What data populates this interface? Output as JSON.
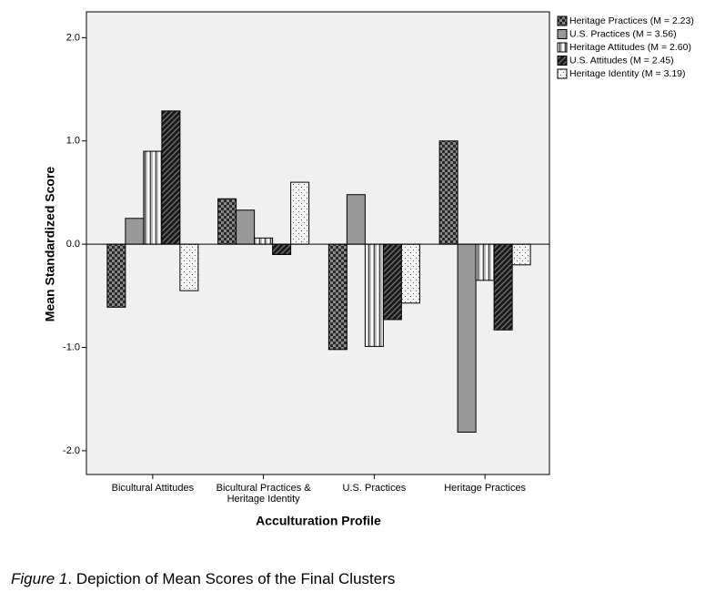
{
  "chart_data": {
    "type": "bar",
    "x_label": "Acculturation Profile",
    "y_label": "Mean Standardized Score",
    "categories": [
      "Bicultural Attitudes",
      "Bicultural Practices & Heritage Identity",
      "U.S. Practices",
      "Heritage Practices"
    ],
    "series": [
      {
        "name": "Heritage Practices (M = 2.23)",
        "color": "#2a2a2a",
        "values": [
          -0.61,
          0.44,
          -1.02,
          1.0
        ]
      },
      {
        "name": "U.S. Practices (M = 3.56)",
        "color": "#999999",
        "values": [
          0.25,
          0.33,
          0.48,
          -1.82
        ]
      },
      {
        "name": "Heritage Attitudes (M = 2.60)",
        "color": "#bbbbbb",
        "values": [
          0.9,
          0.06,
          -0.99,
          -0.35
        ]
      },
      {
        "name": "U.S. Attitudes (M = 2.45)",
        "color": "#1a1a1a",
        "values": [
          1.29,
          -0.1,
          -0.73,
          -0.83
        ]
      },
      {
        "name": "Heritage Identity (M = 3.19)",
        "color": "#f4f4f4",
        "values": [
          -0.45,
          0.6,
          -0.57,
          -0.2
        ]
      }
    ],
    "ylim": [
      -2.23,
      2.25
    ],
    "yticks": [
      {
        "value": -2,
        "label": "-2.0"
      },
      {
        "value": -1,
        "label": "-1.0"
      },
      {
        "value": 0,
        "label": "0.0"
      },
      {
        "value": 1,
        "label": "1.0"
      },
      {
        "value": 2,
        "label": "2.0"
      }
    ],
    "grid": false,
    "legend": "outside-right"
  },
  "caption": {
    "label": "Figure 1",
    "text": ". Depiction of Mean Scores of the Final Clusters"
  }
}
